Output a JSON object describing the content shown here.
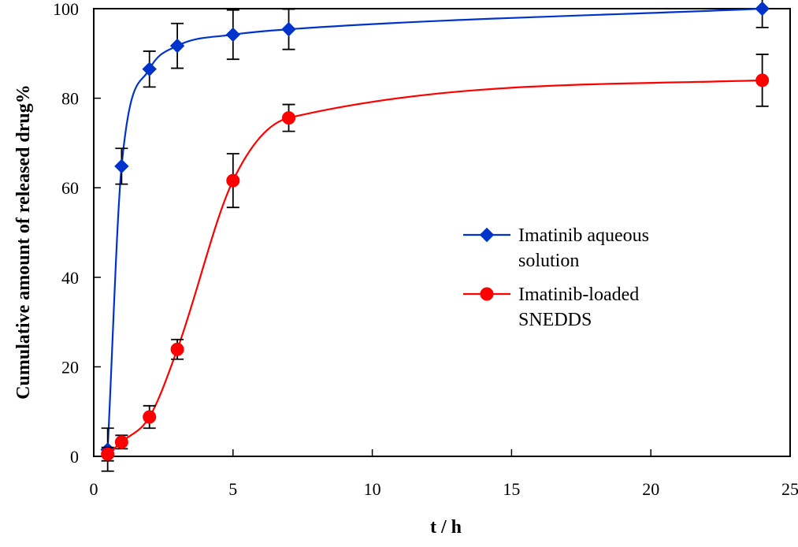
{
  "chart_data": {
    "type": "line",
    "title": "",
    "xlabel": "t / h",
    "ylabel": "Cumulative amount of released drug%",
    "xlim": [
      0,
      25
    ],
    "ylim": [
      0,
      100
    ],
    "xticks": [
      0,
      5,
      10,
      15,
      20,
      25
    ],
    "yticks": [
      0,
      20,
      40,
      60,
      80,
      100
    ],
    "grid": false,
    "legend_position": "right-center",
    "series": [
      {
        "name": "Imatinib aqueous solution",
        "legend_lines": [
          "Imatinib aqueous",
          "solution"
        ],
        "color": "#0033cc",
        "marker": "diamond",
        "x": [
          0.5,
          1,
          2,
          3,
          5,
          7,
          24
        ],
        "y": [
          1.5,
          64.8,
          86.5,
          91.7,
          94.2,
          95.4,
          100.0
        ],
        "error": [
          4.8,
          4.0,
          4.0,
          5.0,
          5.5,
          4.5,
          4.2
        ]
      },
      {
        "name": "Imatinib-loaded SNEDDS",
        "legend_lines": [
          "Imatinib-loaded",
          "SNEDDS"
        ],
        "color": "#ff0000",
        "marker": "circle",
        "x": [
          0.5,
          1,
          2,
          3,
          5,
          7,
          24
        ],
        "y": [
          0.5,
          3.2,
          8.8,
          23.9,
          61.6,
          75.6,
          84.0
        ],
        "error": [
          1.5,
          1.5,
          2.5,
          2.2,
          6.0,
          3.0,
          5.8
        ]
      }
    ]
  }
}
